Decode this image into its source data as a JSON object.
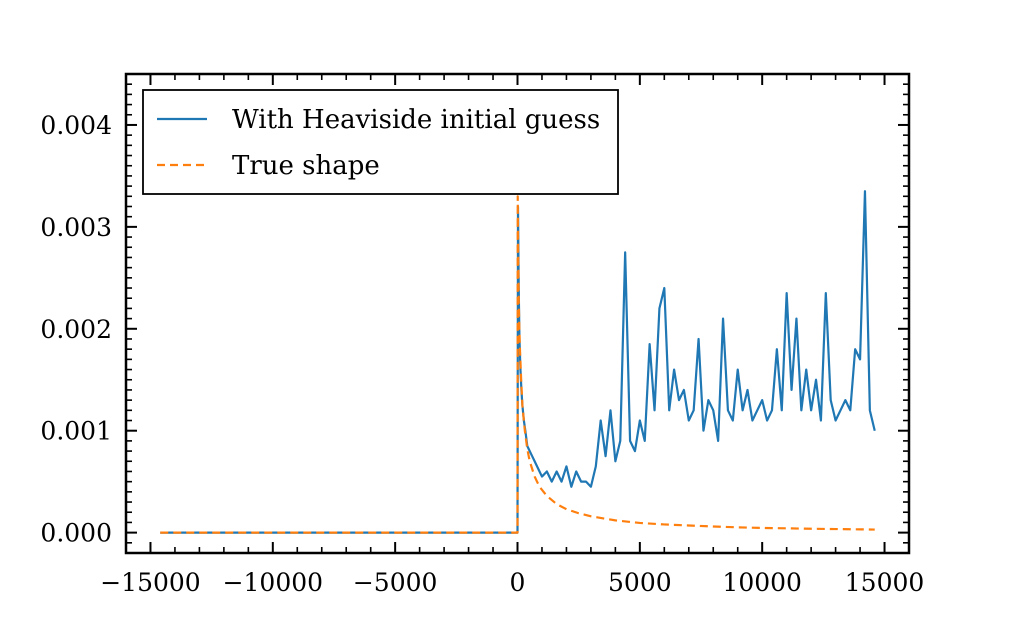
{
  "chart_data": {
    "type": "line",
    "title": "",
    "xlabel": "",
    "ylabel": "",
    "xlim": [
      -16000,
      16000
    ],
    "ylim": [
      -0.0002,
      0.0045
    ],
    "x_ticks": [
      -15000,
      -10000,
      -5000,
      0,
      5000,
      10000,
      15000
    ],
    "x_tick_labels": [
      "−15000",
      "−10000",
      "−5000",
      "0",
      "5000",
      "10000",
      "15000"
    ],
    "y_ticks": [
      0.0,
      0.001,
      0.002,
      0.003,
      0.004
    ],
    "y_tick_labels": [
      "0.000",
      "0.001",
      "0.002",
      "0.003",
      "0.004"
    ],
    "grid": false,
    "legend_position": "top-left",
    "colors": {
      "series_1": "#1f77b4",
      "series_2": "#ff7f0e"
    },
    "series": [
      {
        "name": "With Heaviside initial guess",
        "style": "solid",
        "color": "#1f77b4",
        "x": [
          -14600,
          -7000,
          -100,
          -10,
          0,
          20,
          50,
          80,
          120,
          160,
          200,
          260,
          320,
          400,
          500,
          600,
          700,
          800,
          900,
          1000,
          1200,
          1400,
          1600,
          1800,
          2000,
          2200,
          2400,
          2600,
          2800,
          3000,
          3200,
          3400,
          3600,
          3800,
          4000,
          4200,
          4400,
          4600,
          4800,
          5000,
          5200,
          5400,
          5600,
          5800,
          6000,
          6200,
          6400,
          6600,
          6800,
          7000,
          7200,
          7400,
          7600,
          7800,
          8000,
          8200,
          8400,
          8600,
          8800,
          9000,
          9200,
          9400,
          9600,
          9800,
          10000,
          10200,
          10400,
          10600,
          10800,
          11000,
          11200,
          11400,
          11600,
          11800,
          12000,
          12200,
          12400,
          12600,
          12800,
          13000,
          13200,
          13400,
          13600,
          13800,
          14000,
          14200,
          14400,
          14600
        ],
        "y": [
          0.0,
          0.0,
          0.0,
          0.0,
          0.0,
          0.0032,
          0.0024,
          0.0019,
          0.0016,
          0.0014,
          0.00125,
          0.0011,
          0.001,
          0.00085,
          0.0008,
          0.00075,
          0.0007,
          0.00065,
          0.0006,
          0.00055,
          0.0006,
          0.0005,
          0.0006,
          0.0005,
          0.00065,
          0.00045,
          0.0006,
          0.0005,
          0.0005,
          0.00045,
          0.00065,
          0.0011,
          0.00075,
          0.0012,
          0.0007,
          0.0009,
          0.00275,
          0.0009,
          0.0008,
          0.0011,
          0.0009,
          0.00185,
          0.0012,
          0.0022,
          0.0024,
          0.0012,
          0.0016,
          0.0013,
          0.0014,
          0.0011,
          0.0012,
          0.0019,
          0.001,
          0.0013,
          0.0012,
          0.0009,
          0.0021,
          0.0012,
          0.0011,
          0.0016,
          0.0012,
          0.0014,
          0.0011,
          0.0012,
          0.0013,
          0.0011,
          0.0012,
          0.0018,
          0.0012,
          0.00235,
          0.0014,
          0.0021,
          0.0012,
          0.0016,
          0.0012,
          0.0015,
          0.0011,
          0.00235,
          0.0013,
          0.0011,
          0.0012,
          0.0013,
          0.0012,
          0.0018,
          0.0017,
          0.00335,
          0.0012,
          0.001
        ]
      },
      {
        "name": "True shape",
        "style": "dashed",
        "color": "#ff7f0e",
        "x": [
          -14600,
          -7000,
          -100,
          -10,
          0,
          10,
          25,
          50,
          75,
          100,
          150,
          200,
          300,
          400,
          500,
          700,
          900,
          1200,
          1600,
          2000,
          2500,
          3000,
          4000,
          5000,
          6000,
          7000,
          8000,
          9000,
          10000,
          11000,
          12000,
          13000,
          14000,
          14600
        ],
        "y": [
          0.0,
          0.0,
          0.0,
          0.0,
          0.0,
          0.0033,
          0.0028,
          0.0023,
          0.002,
          0.0018,
          0.0015,
          0.00125,
          0.001,
          0.00082,
          0.0007,
          0.00055,
          0.00045,
          0.00036,
          0.00028,
          0.00023,
          0.00019,
          0.00016,
          0.00012,
          9.5e-05,
          8e-05,
          7e-05,
          6e-05,
          5.2e-05,
          4.6e-05,
          4.2e-05,
          3.8e-05,
          3.5e-05,
          3.2e-05,
          3e-05
        ]
      }
    ]
  }
}
